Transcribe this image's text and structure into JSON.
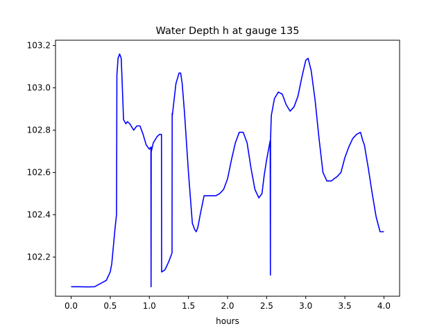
{
  "chart_data": {
    "type": "line",
    "title": "Water Depth h at gauge 135",
    "xlabel": "hours",
    "ylabel": "",
    "xlim": [
      -0.2,
      4.2
    ],
    "ylim": [
      102.015,
      103.225
    ],
    "x_ticks": [
      0.0,
      0.5,
      1.0,
      1.5,
      2.0,
      2.5,
      3.0,
      3.5,
      4.0
    ],
    "x_tick_labels": [
      "0.0",
      "0.5",
      "1.0",
      "1.5",
      "2.0",
      "2.5",
      "3.0",
      "3.5",
      "4.0"
    ],
    "y_ticks": [
      102.2,
      102.4,
      102.6,
      102.8,
      103.0,
      103.2
    ],
    "y_tick_labels": [
      "102.2",
      "102.4",
      "102.6",
      "102.8",
      "103.0",
      "103.2"
    ],
    "grid": false,
    "legend": "none",
    "line_color": "#0000ff",
    "series": [
      {
        "x": [
          0.0,
          0.1,
          0.2,
          0.3,
          0.35,
          0.4,
          0.45,
          0.5,
          0.52,
          0.54,
          0.56,
          0.58,
          0.583,
          0.585,
          0.6,
          0.62,
          0.64,
          0.65,
          0.66,
          0.67,
          0.7,
          0.72,
          0.75,
          0.8,
          0.84,
          0.88,
          0.92,
          0.96,
          1.0,
          1.02,
          1.022,
          1.024,
          1.026,
          1.05,
          1.1,
          1.13,
          1.155,
          1.157,
          1.159,
          1.2,
          1.25,
          1.29,
          1.292,
          1.294,
          1.34,
          1.38,
          1.4,
          1.42,
          1.45,
          1.5,
          1.55,
          1.58,
          1.6,
          1.62,
          1.65,
          1.7,
          1.75,
          1.8,
          1.85,
          1.9,
          1.95,
          2.0,
          2.05,
          2.1,
          2.15,
          2.2,
          2.25,
          2.3,
          2.35,
          2.4,
          2.44,
          2.47,
          2.5,
          2.53,
          2.545,
          2.548,
          2.55,
          2.552,
          2.555,
          2.56,
          2.6,
          2.65,
          2.7,
          2.75,
          2.8,
          2.85,
          2.9,
          2.95,
          3.0,
          3.03,
          3.07,
          3.12,
          3.17,
          3.22,
          3.27,
          3.3,
          3.33,
          3.36,
          3.4,
          3.45,
          3.5,
          3.55,
          3.6,
          3.65,
          3.7,
          3.73,
          3.75,
          3.8,
          3.85,
          3.9,
          3.95,
          4.0
        ],
        "y": [
          102.06,
          102.06,
          102.059,
          102.06,
          102.07,
          102.08,
          102.09,
          102.13,
          102.17,
          102.25,
          102.33,
          102.4,
          102.75,
          103.06,
          103.14,
          103.16,
          103.14,
          103.05,
          102.95,
          102.85,
          102.83,
          102.84,
          102.83,
          102.8,
          102.82,
          102.82,
          102.78,
          102.73,
          102.71,
          102.72,
          102.06,
          102.72,
          102.7,
          102.74,
          102.77,
          102.78,
          102.78,
          102.13,
          102.13,
          102.14,
          102.18,
          102.22,
          102.88,
          102.87,
          103.02,
          103.07,
          103.07,
          103.02,
          102.88,
          102.6,
          102.36,
          102.33,
          102.32,
          102.34,
          102.4,
          102.49,
          102.49,
          102.49,
          102.49,
          102.5,
          102.52,
          102.57,
          102.66,
          102.74,
          102.79,
          102.79,
          102.74,
          102.62,
          102.52,
          102.48,
          102.5,
          102.59,
          102.66,
          102.72,
          102.75,
          102.115,
          102.76,
          102.78,
          102.82,
          102.87,
          102.95,
          102.98,
          102.97,
          102.92,
          102.89,
          102.91,
          102.96,
          103.05,
          103.13,
          103.14,
          103.08,
          102.94,
          102.76,
          102.6,
          102.56,
          102.56,
          102.56,
          102.57,
          102.58,
          102.6,
          102.67,
          102.72,
          102.76,
          102.78,
          102.79,
          102.75,
          102.73,
          102.62,
          102.5,
          102.39,
          102.32,
          102.32
        ]
      }
    ]
  }
}
